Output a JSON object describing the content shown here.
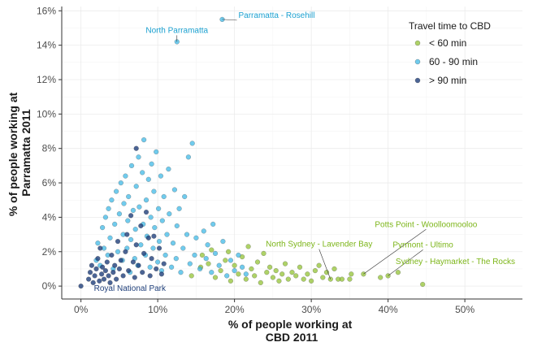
{
  "chart_data": {
    "type": "scatter",
    "xlabel_lines": [
      "% of people working at",
      "CBD 2011"
    ],
    "ylabel_lines": [
      "% of people working at",
      "Parramatta 2011"
    ],
    "xlim": [
      -0.025,
      0.575
    ],
    "ylim": [
      -0.0075,
      0.1625
    ],
    "x_ticks": [
      0,
      0.1,
      0.2,
      0.3,
      0.4,
      0.5
    ],
    "x_tick_labels": [
      "0%",
      "10%",
      "20%",
      "30%",
      "40%",
      "50%"
    ],
    "y_ticks": [
      0,
      0.02,
      0.04,
      0.06,
      0.08,
      0.1,
      0.12,
      0.14,
      0.16
    ],
    "y_tick_labels": [
      "0%",
      "2%",
      "4%",
      "6%",
      "8%",
      "10%",
      "12%",
      "14%",
      "16%"
    ],
    "grid": true,
    "legend": {
      "title": "Travel time to CBD",
      "position": "top-right",
      "entries": [
        {
          "label": "< 60 min",
          "color": "#8cbf26"
        },
        {
          "label": "60 - 90 min",
          "color": "#33b5e5"
        },
        {
          "label": "> 90 min",
          "color": "#1f3f7a"
        }
      ]
    },
    "series": [
      {
        "name": "< 60 min",
        "color": "#8cbf26",
        "points": [
          [
            0.144,
            0.006
          ],
          [
            0.156,
            0.011
          ],
          [
            0.158,
            0.018
          ],
          [
            0.166,
            0.013
          ],
          [
            0.17,
            0.021
          ],
          [
            0.175,
            0.005
          ],
          [
            0.182,
            0.009
          ],
          [
            0.188,
            0.015
          ],
          [
            0.192,
            0.02
          ],
          [
            0.195,
            0.003
          ],
          [
            0.2,
            0.012
          ],
          [
            0.205,
            0.007
          ],
          [
            0.21,
            0.017
          ],
          [
            0.215,
            0.004
          ],
          [
            0.218,
            0.023
          ],
          [
            0.222,
            0.01
          ],
          [
            0.226,
            0.006
          ],
          [
            0.23,
            0.014
          ],
          [
            0.234,
            0.002
          ],
          [
            0.238,
            0.019
          ],
          [
            0.242,
            0.008
          ],
          [
            0.246,
            0.011
          ],
          [
            0.25,
            0.005
          ],
          [
            0.254,
            0.009
          ],
          [
            0.258,
            0.003
          ],
          [
            0.262,
            0.007
          ],
          [
            0.266,
            0.013
          ],
          [
            0.27,
            0.004
          ],
          [
            0.275,
            0.008
          ],
          [
            0.28,
            0.006
          ],
          [
            0.285,
            0.011
          ],
          [
            0.29,
            0.004
          ],
          [
            0.295,
            0.007
          ],
          [
            0.3,
            0.003
          ],
          [
            0.305,
            0.009
          ],
          [
            0.31,
            0.012
          ],
          [
            0.315,
            0.005
          ],
          [
            0.32,
            0.008
          ],
          [
            0.325,
            0.004
          ],
          [
            0.33,
            0.01
          ],
          [
            0.335,
            0.004
          ],
          [
            0.34,
            0.004
          ],
          [
            0.35,
            0.004
          ],
          [
            0.352,
            0.007
          ],
          [
            0.368,
            0.007
          ],
          [
            0.39,
            0.005
          ],
          [
            0.4,
            0.006
          ],
          [
            0.413,
            0.008
          ],
          [
            0.445,
            0.001
          ]
        ]
      },
      {
        "name": "60 - 90 min",
        "color": "#33b5e5",
        "points": [
          [
            0.02,
            0.015
          ],
          [
            0.022,
            0.025
          ],
          [
            0.025,
            0.012
          ],
          [
            0.028,
            0.034
          ],
          [
            0.03,
            0.022
          ],
          [
            0.032,
            0.04
          ],
          [
            0.035,
            0.018
          ],
          [
            0.036,
            0.045
          ],
          [
            0.038,
            0.028
          ],
          [
            0.04,
            0.05
          ],
          [
            0.042,
            0.01
          ],
          [
            0.044,
            0.036
          ],
          [
            0.046,
            0.055
          ],
          [
            0.048,
            0.02
          ],
          [
            0.05,
            0.042
          ],
          [
            0.052,
            0.06
          ],
          [
            0.054,
            0.015
          ],
          [
            0.055,
            0.03
          ],
          [
            0.056,
            0.048
          ],
          [
            0.058,
            0.064
          ],
          [
            0.06,
            0.022
          ],
          [
            0.061,
            0.038
          ],
          [
            0.062,
            0.052
          ],
          [
            0.064,
            0.008
          ],
          [
            0.065,
            0.027
          ],
          [
            0.066,
            0.07
          ],
          [
            0.068,
            0.044
          ],
          [
            0.07,
            0.016
          ],
          [
            0.071,
            0.033
          ],
          [
            0.072,
            0.058
          ],
          [
            0.074,
            0.012
          ],
          [
            0.075,
            0.075
          ],
          [
            0.076,
            0.046
          ],
          [
            0.078,
            0.024
          ],
          [
            0.08,
            0.066
          ],
          [
            0.081,
            0.036
          ],
          [
            0.082,
            0.085
          ],
          [
            0.084,
            0.018
          ],
          [
            0.085,
            0.05
          ],
          [
            0.086,
            0.029
          ],
          [
            0.088,
            0.062
          ],
          [
            0.09,
            0.011
          ],
          [
            0.091,
            0.04
          ],
          [
            0.092,
            0.071
          ],
          [
            0.094,
            0.022
          ],
          [
            0.095,
            0.055
          ],
          [
            0.096,
            0.034
          ],
          [
            0.098,
            0.078
          ],
          [
            0.1,
            0.014
          ],
          [
            0.101,
            0.045
          ],
          [
            0.102,
            0.026
          ],
          [
            0.104,
            0.064
          ],
          [
            0.105,
            0.009
          ],
          [
            0.106,
            0.038
          ],
          [
            0.108,
            0.052
          ],
          [
            0.11,
            0.018
          ],
          [
            0.112,
            0.03
          ],
          [
            0.114,
            0.068
          ],
          [
            0.115,
            0.042
          ],
          [
            0.118,
            0.011
          ],
          [
            0.12,
            0.025
          ],
          [
            0.122,
            0.056
          ],
          [
            0.124,
            0.016
          ],
          [
            0.125,
            0.035
          ],
          [
            0.128,
            0.045
          ],
          [
            0.13,
            0.008
          ],
          [
            0.133,
            0.022
          ],
          [
            0.135,
            0.052
          ],
          [
            0.138,
            0.03
          ],
          [
            0.14,
            0.075
          ],
          [
            0.142,
            0.013
          ],
          [
            0.145,
            0.083
          ],
          [
            0.148,
            0.018
          ],
          [
            0.15,
            0.028
          ],
          [
            0.155,
            0.01
          ],
          [
            0.16,
            0.032
          ],
          [
            0.163,
            0.016
          ],
          [
            0.165,
            0.024
          ],
          [
            0.17,
            0.008
          ],
          [
            0.172,
            0.036
          ],
          [
            0.175,
            0.019
          ],
          [
            0.18,
            0.012
          ],
          [
            0.185,
            0.026
          ],
          [
            0.19,
            0.006
          ],
          [
            0.195,
            0.015
          ],
          [
            0.2,
            0.009
          ],
          [
            0.205,
            0.018
          ],
          [
            0.21,
            0.011
          ],
          [
            0.215,
            0.007
          ],
          [
            0.125,
            0.142
          ],
          [
            0.184,
            0.155
          ]
        ]
      },
      {
        "name": "> 90 min",
        "color": "#1f3f7a",
        "points": [
          [
            0,
            0
          ],
          [
            0.01,
            0.004
          ],
          [
            0.012,
            0.008
          ],
          [
            0.014,
            0.012
          ],
          [
            0.016,
            0.002
          ],
          [
            0.018,
            0.006
          ],
          [
            0.02,
            0.01
          ],
          [
            0.022,
            0.016
          ],
          [
            0.024,
            0.003
          ],
          [
            0.025,
            0.022
          ],
          [
            0.027,
            0.007
          ],
          [
            0.028,
            0.011
          ],
          [
            0.03,
            0.004
          ],
          [
            0.032,
            0.009
          ],
          [
            0.034,
            0.014
          ],
          [
            0.036,
            0.006
          ],
          [
            0.038,
            0.002
          ],
          [
            0.04,
            0.018
          ],
          [
            0.042,
            0.008
          ],
          [
            0.044,
            0.012
          ],
          [
            0.046,
            0.004
          ],
          [
            0.048,
            0.026
          ],
          [
            0.05,
            0.01
          ],
          [
            0.052,
            0.015
          ],
          [
            0.055,
            0.006
          ],
          [
            0.058,
            0.02
          ],
          [
            0.06,
            0.03
          ],
          [
            0.062,
            0.009
          ],
          [
            0.065,
            0.041
          ],
          [
            0.068,
            0.014
          ],
          [
            0.07,
            0.005
          ],
          [
            0.072,
            0.024
          ],
          [
            0.075,
            0.012
          ],
          [
            0.078,
            0.035
          ],
          [
            0.08,
            0.008
          ],
          [
            0.082,
            0.019
          ],
          [
            0.085,
            0.043
          ],
          [
            0.088,
            0.028
          ],
          [
            0.09,
            0.006
          ],
          [
            0.092,
            0.016
          ],
          [
            0.095,
            0.029
          ],
          [
            0.098,
            0.01
          ],
          [
            0.102,
            0.022
          ],
          [
            0.105,
            0.007
          ],
          [
            0.108,
            0.013
          ],
          [
            0.072,
            0.08
          ]
        ]
      }
    ],
    "annotations": [
      {
        "text": "Parramatta - Rosehill",
        "series": 1,
        "x": 0.184,
        "y": 0.155,
        "color": "#1aa0d0",
        "anchor": "start",
        "dx": 20,
        "dy": -2,
        "leader": true
      },
      {
        "text": "North Parramatta",
        "series": 1,
        "x": 0.125,
        "y": 0.142,
        "color": "#1aa0d0",
        "anchor": "middle",
        "dx": 0,
        "dy": -11,
        "leader": true
      },
      {
        "text": "Potts Point - Woolloomooloo",
        "series": 0,
        "x": 0.368,
        "y": 0.007,
        "color": "#7cb518",
        "anchor": "middle",
        "dx": 77,
        "dy": -58,
        "leader": true
      },
      {
        "text": "North Sydney - Lavender Bay",
        "series": 0,
        "x": 0.325,
        "y": 0.004,
        "color": "#7cb518",
        "anchor": "middle",
        "dx": -14,
        "dy": -40,
        "leader": true
      },
      {
        "text": "Pyrmont - Ultimo",
        "series": 0,
        "x": 0.4,
        "y": 0.006,
        "color": "#7cb518",
        "anchor": "middle",
        "dx": 43,
        "dy": -35,
        "leader": true
      },
      {
        "text": "Sydney - Haymarket - The Rocks",
        "series": 0,
        "x": 0.413,
        "y": 0.008,
        "color": "#7cb518",
        "anchor": "start",
        "dx": -3,
        "dy": -10,
        "leader": false
      },
      {
        "text": "Royal National Park",
        "series": 2,
        "x": 0,
        "y": 0,
        "color": "#1f3f7a",
        "anchor": "start",
        "dx": 16,
        "dy": 6,
        "leader": false
      }
    ]
  }
}
